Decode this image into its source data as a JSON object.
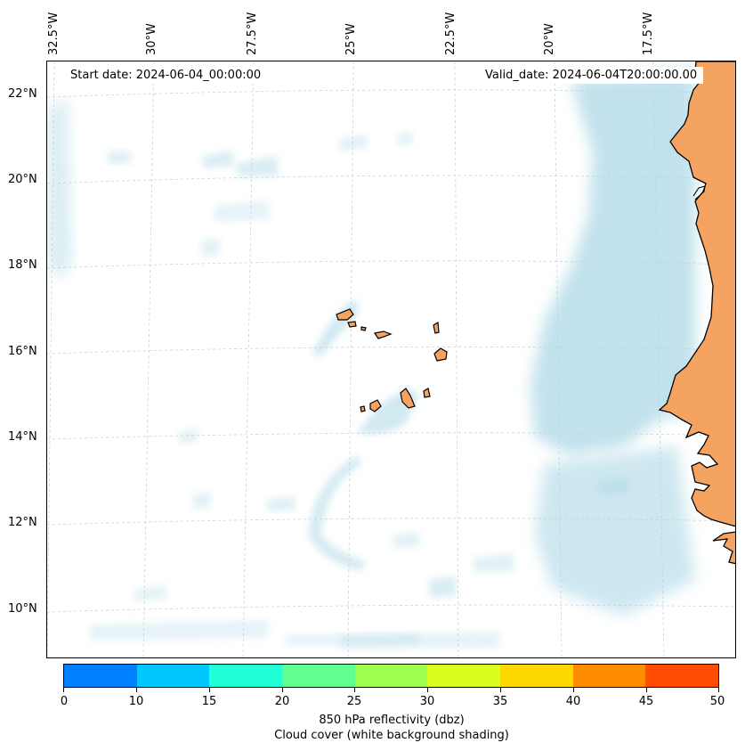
{
  "header": {
    "start_date": "Start date: 2024-06-04_00:00:00",
    "valid_date": "Valid_date: 2024-06-04T20:00:00.00"
  },
  "map": {
    "longitude_labels": [
      "32.5°W",
      "30°W",
      "27.5°W",
      "25°W",
      "22.5°W",
      "20°W",
      "17.5°W"
    ],
    "latitude_labels": [
      "22°N",
      "20°N",
      "18°N",
      "16°N",
      "14°N",
      "12°N",
      "10°N"
    ],
    "land_color": "#f4a460",
    "coast_color": "#000000",
    "cloud_color": "#add8e6",
    "gridlines": "dashed light grey"
  },
  "colorbar": {
    "colors": [
      "#0080ff",
      "#00c8ff",
      "#20ffd8",
      "#60ff90",
      "#a0ff50",
      "#d8ff20",
      "#ffd800",
      "#ff8c00",
      "#ff4c00"
    ],
    "tick_labels": [
      "0",
      "10",
      "15",
      "20",
      "25",
      "30",
      "35",
      "40",
      "45",
      "50"
    ],
    "title_line1": "850 hPa reflectivity (dbz)",
    "title_line2": "Cloud cover (white background shading)"
  }
}
